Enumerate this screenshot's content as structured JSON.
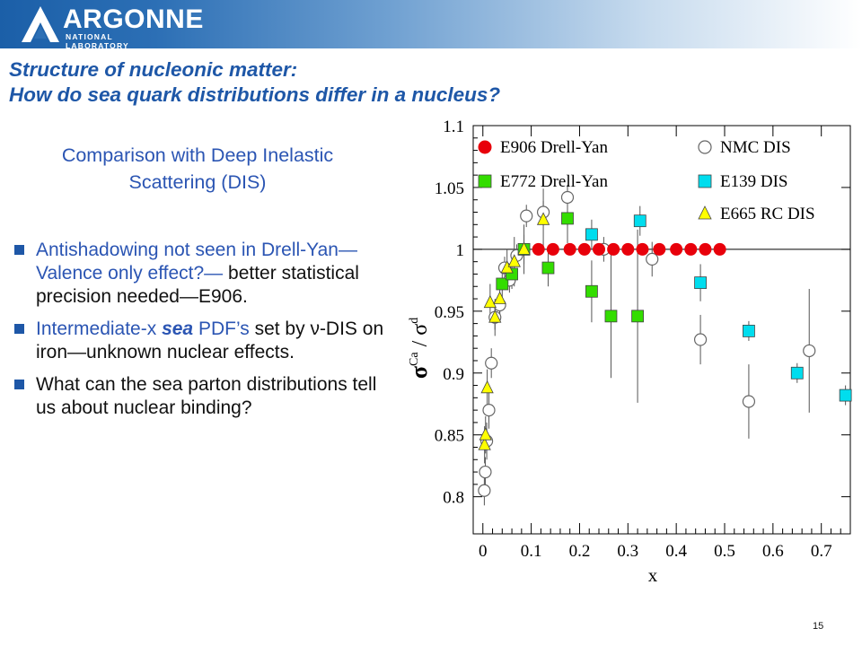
{
  "header": {
    "logo_text": "ARGONNE",
    "logo_subtext": "NATIONAL LABORATORY"
  },
  "title_line1": "Structure of nucleonic matter:",
  "title_line2": "How do sea quark distributions differ in a nucleus?",
  "subtitle": "Comparison with Deep Inelastic Scattering (DIS)",
  "bullets": {
    "b1": "Antishadowing not seen in Drell-Yan—Valence only effect?—",
    "b1_rest": "better statistical precision needed—E906.",
    "b2_pre": "Intermediate-x ",
    "b2_sea": "sea",
    "b2_mid": " PDF’s",
    "b2_rest": " set by ",
    "b2_nu": "ν",
    "b2_end": "-DIS on iron—unknown nuclear effects.",
    "b3": "What can the sea parton distributions tell us about nuclear binding?"
  },
  "page_number": "15",
  "chart_data": {
    "type": "scatter",
    "xlabel": "x",
    "ylabel_main": "σ",
    "ylabel_sup1": "Ca",
    "ylabel_mid": " / σ",
    "ylabel_sup2": "d",
    "xlim": [
      -0.02,
      0.76
    ],
    "ylim": [
      0.77,
      1.1
    ],
    "xticks": [
      0,
      0.1,
      0.2,
      0.3,
      0.4,
      0.5,
      0.6,
      0.7
    ],
    "xtick_labels": [
      "0",
      "0.1",
      "0.2",
      "0.3",
      "0.4",
      "0.5",
      "0.6",
      "0.7"
    ],
    "yticks": [
      0.8,
      0.85,
      0.9,
      0.95,
      1.0,
      1.05,
      1.1
    ],
    "ytick_labels": [
      "0.8",
      "0.85",
      "0.9",
      "0.95",
      "1",
      "1.05",
      "1.1"
    ],
    "reference_line": 1.0,
    "series": [
      {
        "name": "E906 Drell-Yan",
        "marker": "circle-filled",
        "color": "#e8000b",
        "x": [
          0.115,
          0.145,
          0.18,
          0.21,
          0.24,
          0.27,
          0.3,
          0.33,
          0.365,
          0.4,
          0.43,
          0.46,
          0.49
        ],
        "y": [
          1.0,
          1.0,
          1.0,
          1.0,
          1.0,
          1.0,
          1.0,
          1.0,
          1.0,
          1.0,
          1.0,
          1.0,
          1.0
        ],
        "err": [
          0.003,
          0.003,
          0.003,
          0.003,
          0.003,
          0.003,
          0.003,
          0.003,
          0.003,
          0.003,
          0.003,
          0.003,
          0.003
        ]
      },
      {
        "name": "NMC DIS",
        "marker": "circle-open",
        "color": "#666666",
        "x": [
          0.003,
          0.005,
          0.008,
          0.0125,
          0.0175,
          0.025,
          0.035,
          0.045,
          0.055,
          0.07,
          0.09,
          0.125,
          0.175,
          0.25,
          0.35,
          0.45,
          0.55,
          0.675
        ],
        "y": [
          0.805,
          0.82,
          0.845,
          0.87,
          0.908,
          0.945,
          0.955,
          0.985,
          0.975,
          0.995,
          1.027,
          1.03,
          1.042,
          1.0,
          0.992,
          0.927,
          0.877,
          0.918
        ],
        "err": [
          0.012,
          0.012,
          0.015,
          0.015,
          0.012,
          0.01,
          0.01,
          0.009,
          0.01,
          0.009,
          0.009,
          0.009,
          0.01,
          0.01,
          0.014,
          0.02,
          0.03,
          0.05
        ]
      },
      {
        "name": "E772 Drell-Yan",
        "marker": "square-filled",
        "color": "#33dd00",
        "x": [
          0.04,
          0.06,
          0.085,
          0.135,
          0.175,
          0.225,
          0.265,
          0.32
        ],
        "y": [
          0.972,
          0.98,
          1.0,
          0.985,
          1.025,
          0.966,
          0.946,
          0.946
        ],
        "err": [
          0.015,
          0.012,
          0.012,
          0.015,
          0.02,
          0.025,
          0.05,
          0.07
        ]
      },
      {
        "name": "E139 DIS",
        "marker": "square-filled",
        "color": "#00ddee",
        "x": [
          0.225,
          0.325,
          0.45,
          0.55,
          0.65,
          0.75
        ],
        "y": [
          1.012,
          1.023,
          0.973,
          0.934,
          0.9,
          0.882
        ],
        "err": [
          0.012,
          0.012,
          0.015,
          0.008,
          0.008,
          0.008
        ]
      },
      {
        "name": "E665 RC DIS",
        "marker": "triangle-filled",
        "color": "#ffff00",
        "x": [
          0.0035,
          0.0055,
          0.009,
          0.015,
          0.025,
          0.035,
          0.05,
          0.065,
          0.085,
          0.125
        ],
        "y": [
          0.842,
          0.85,
          0.888,
          0.957,
          0.945,
          0.96,
          0.985,
          0.99,
          1.0,
          1.024
        ],
        "err": [
          0.015,
          0.015,
          0.015,
          0.015,
          0.015,
          0.015,
          0.015,
          0.02,
          0.02,
          0.025
        ]
      }
    ]
  }
}
